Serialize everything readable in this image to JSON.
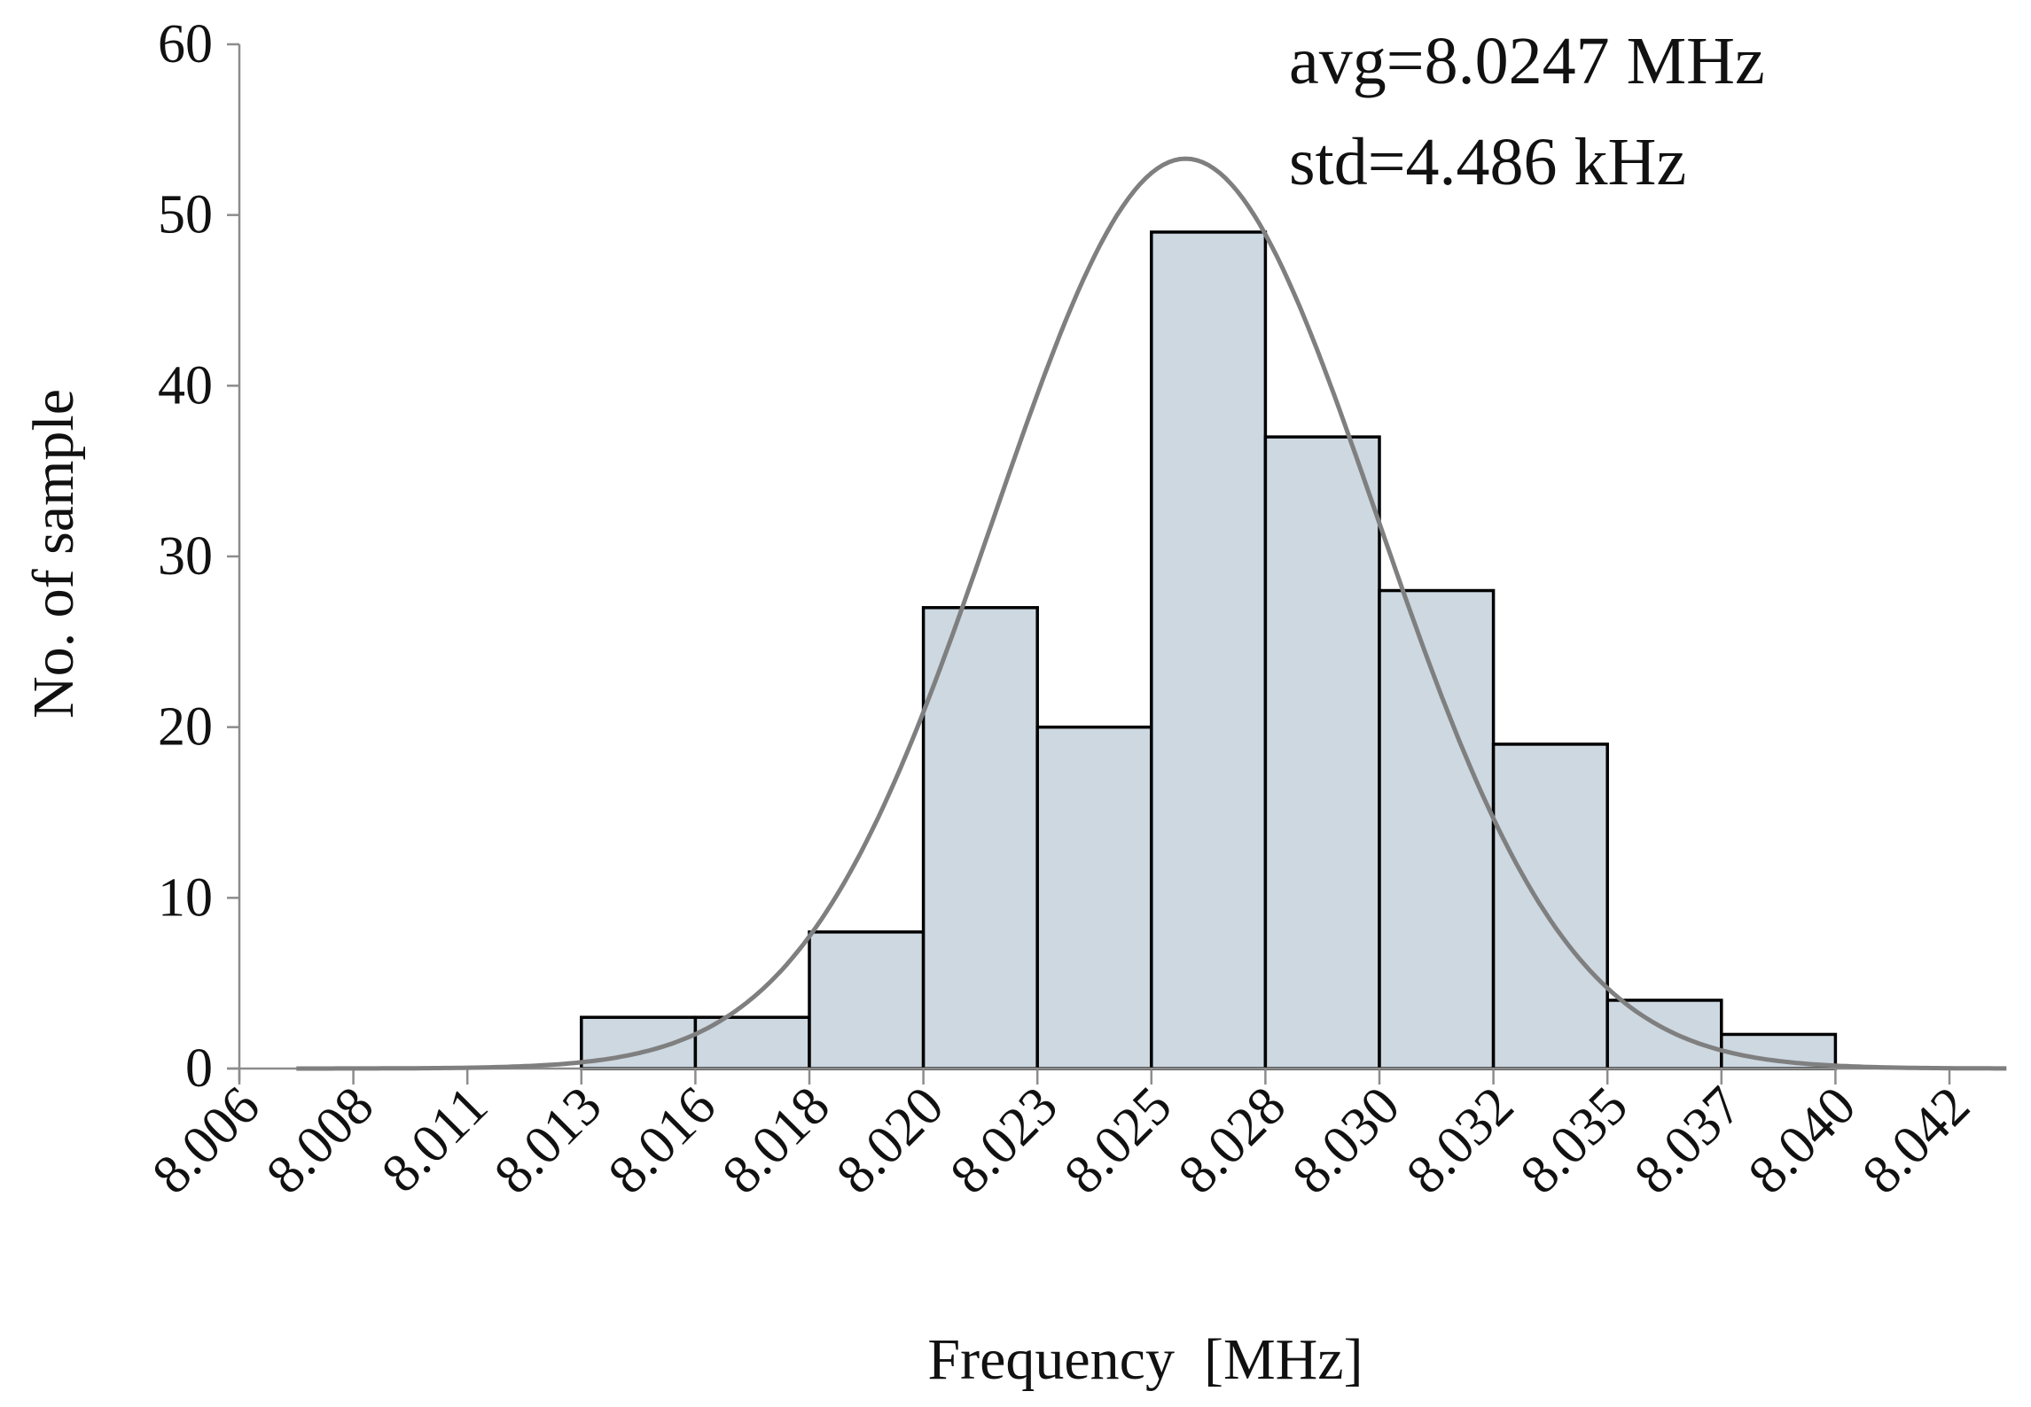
{
  "chart_data": {
    "type": "bar",
    "subtype": "histogram-with-normal-fit",
    "title": "",
    "xlabel": "Frequency  [MHz]",
    "ylabel": "No. of sample",
    "x_tick_labels": [
      "8.006",
      "8.008",
      "8.011",
      "8.013",
      "8.016",
      "8.018",
      "8.020",
      "8.023",
      "8.025",
      "8.028",
      "8.030",
      "8.032",
      "8.035",
      "8.037",
      "8.040",
      "8.042"
    ],
    "bins": [
      {
        "start_index": 3,
        "end_index": 4,
        "value": 3
      },
      {
        "start_index": 4,
        "end_index": 5,
        "value": 3
      },
      {
        "start_index": 5,
        "end_index": 6,
        "value": 8
      },
      {
        "start_index": 6,
        "end_index": 7,
        "value": 27
      },
      {
        "start_index": 7,
        "end_index": 8,
        "value": 20
      },
      {
        "start_index": 8,
        "end_index": 9,
        "value": 49
      },
      {
        "start_index": 9,
        "end_index": 10,
        "value": 37
      },
      {
        "start_index": 10,
        "end_index": 11,
        "value": 28
      },
      {
        "start_index": 11,
        "end_index": 12,
        "value": 19
      },
      {
        "start_index": 12,
        "end_index": 13,
        "value": 4
      },
      {
        "start_index": 13,
        "end_index": 14,
        "value": 2
      }
    ],
    "fit_curve": {
      "type": "normal",
      "mean_tick_index": 8.3,
      "sd_tick_index": 1.68,
      "peak_value": 53.3,
      "x_range_tick_index": [
        0.5,
        15.5
      ],
      "color": "#7f7f7f"
    },
    "ylim": [
      0,
      60
    ],
    "y_ticks": [
      0,
      10,
      20,
      30,
      40,
      50,
      60
    ],
    "bar_fill": "#cdd8e1",
    "bar_stroke": "#000000",
    "axis_color": "#8c8c8c",
    "grid": false,
    "legend": "none",
    "annotations": [
      "avg=8.0247 MHz",
      "std=4.486 kHz"
    ]
  }
}
